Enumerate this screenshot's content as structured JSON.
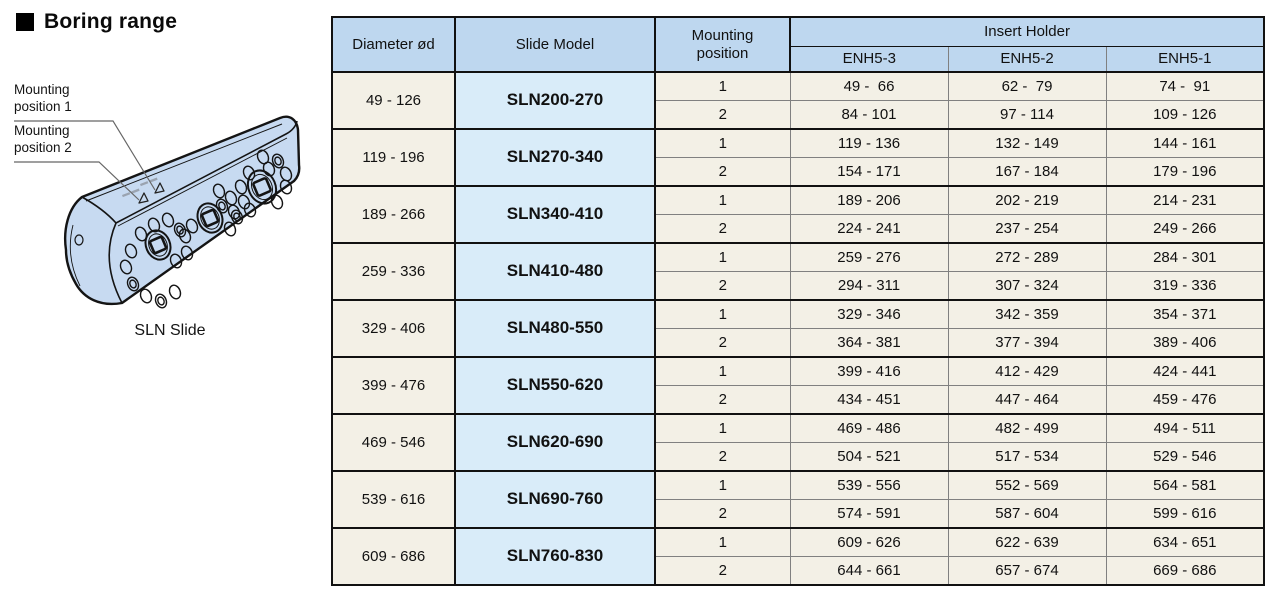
{
  "section": {
    "title": "Boring range"
  },
  "figure": {
    "labels": [
      {
        "line1": "Mounting",
        "line2": "position 1"
      },
      {
        "line1": "Mounting",
        "line2": "position 2"
      }
    ],
    "caption": "SLN Slide"
  },
  "table": {
    "headers": {
      "diameter": "Diameter ød",
      "slide_model": "Slide Model",
      "mounting_position": "Mounting position",
      "insert_holder": "Insert Holder",
      "holder_models": [
        "ENH5-3",
        "ENH5-2",
        "ENH5-1"
      ]
    },
    "groups": [
      {
        "diameter": "49 - 126",
        "model": "SLN200-270",
        "rows": [
          [
            "1",
            "49 -  66",
            "62 -  79",
            "74 -  91"
          ],
          [
            "2",
            "84 - 101",
            "97 - 114",
            "109 - 126"
          ]
        ]
      },
      {
        "diameter": "119 - 196",
        "model": "SLN270-340",
        "rows": [
          [
            "1",
            "119 - 136",
            "132 - 149",
            "144 - 161"
          ],
          [
            "2",
            "154 - 171",
            "167 - 184",
            "179 - 196"
          ]
        ]
      },
      {
        "diameter": "189 - 266",
        "model": "SLN340-410",
        "rows": [
          [
            "1",
            "189 - 206",
            "202 - 219",
            "214 - 231"
          ],
          [
            "2",
            "224 - 241",
            "237 - 254",
            "249 - 266"
          ]
        ]
      },
      {
        "diameter": "259 - 336",
        "model": "SLN410-480",
        "rows": [
          [
            "1",
            "259 - 276",
            "272 - 289",
            "284 - 301"
          ],
          [
            "2",
            "294 - 311",
            "307 - 324",
            "319 - 336"
          ]
        ]
      },
      {
        "diameter": "329 - 406",
        "model": "SLN480-550",
        "rows": [
          [
            "1",
            "329 - 346",
            "342 - 359",
            "354 - 371"
          ],
          [
            "2",
            "364 - 381",
            "377 - 394",
            "389 - 406"
          ]
        ]
      },
      {
        "diameter": "399 - 476",
        "model": "SLN550-620",
        "rows": [
          [
            "1",
            "399 - 416",
            "412 - 429",
            "424 - 441"
          ],
          [
            "2",
            "434 - 451",
            "447 - 464",
            "459 - 476"
          ]
        ]
      },
      {
        "diameter": "469 - 546",
        "model": "SLN620-690",
        "rows": [
          [
            "1",
            "469 - 486",
            "482 - 499",
            "494 - 511"
          ],
          [
            "2",
            "504 - 521",
            "517 - 534",
            "529 - 546"
          ]
        ]
      },
      {
        "diameter": "539 - 616",
        "model": "SLN690-760",
        "rows": [
          [
            "1",
            "539 - 556",
            "552 - 569",
            "564 - 581"
          ],
          [
            "2",
            "574 - 591",
            "587 - 604",
            "599 - 616"
          ]
        ]
      },
      {
        "diameter": "609 - 686",
        "model": "SLN760-830",
        "rows": [
          [
            "1",
            "609 - 626",
            "622 - 639",
            "634 - 651"
          ],
          [
            "2",
            "644 - 661",
            "657 - 674",
            "669 - 686"
          ]
        ]
      }
    ]
  },
  "colors": {
    "header_bg": "#bed7ef",
    "model_cell_bg": "#d9ecf9",
    "row_bg": "#f3f0e6",
    "slide_body_fill": "#c7daf1",
    "grid_thick": "#111111",
    "grid_thin": "#808080"
  }
}
